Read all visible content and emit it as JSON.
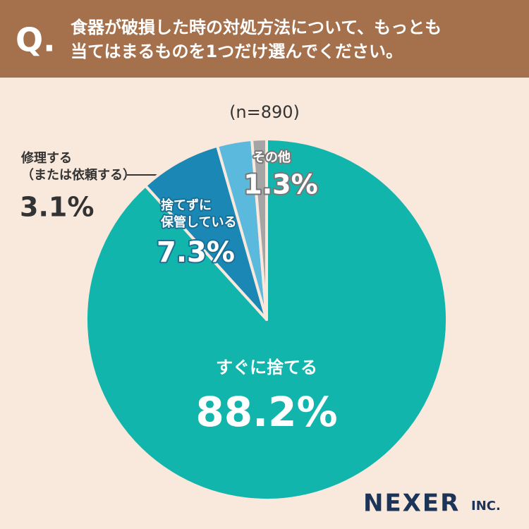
{
  "header": {
    "mark": "Q."
  },
  "chart_data": {
    "type": "pie",
    "title": "食器が破損した時の対処方法について、もっとも\n当てはまるものを1つだけ選んでください。",
    "subtitle": "(n=890)",
    "categories": [
      "すぐに捨てる",
      "捨てずに\n保管している",
      "修理する\n（または依頼する）",
      "その他"
    ],
    "values": [
      88.2,
      7.3,
      3.1,
      1.3
    ],
    "value_labels": [
      "88.2%",
      "7.3%",
      "3.1%",
      "1.3%"
    ],
    "colors": [
      "#12b5ab",
      "#1a87b5",
      "#5cb9de",
      "#a5a5a5"
    ]
  },
  "logo": {
    "main": "NEXER",
    "sub": "INC."
  }
}
